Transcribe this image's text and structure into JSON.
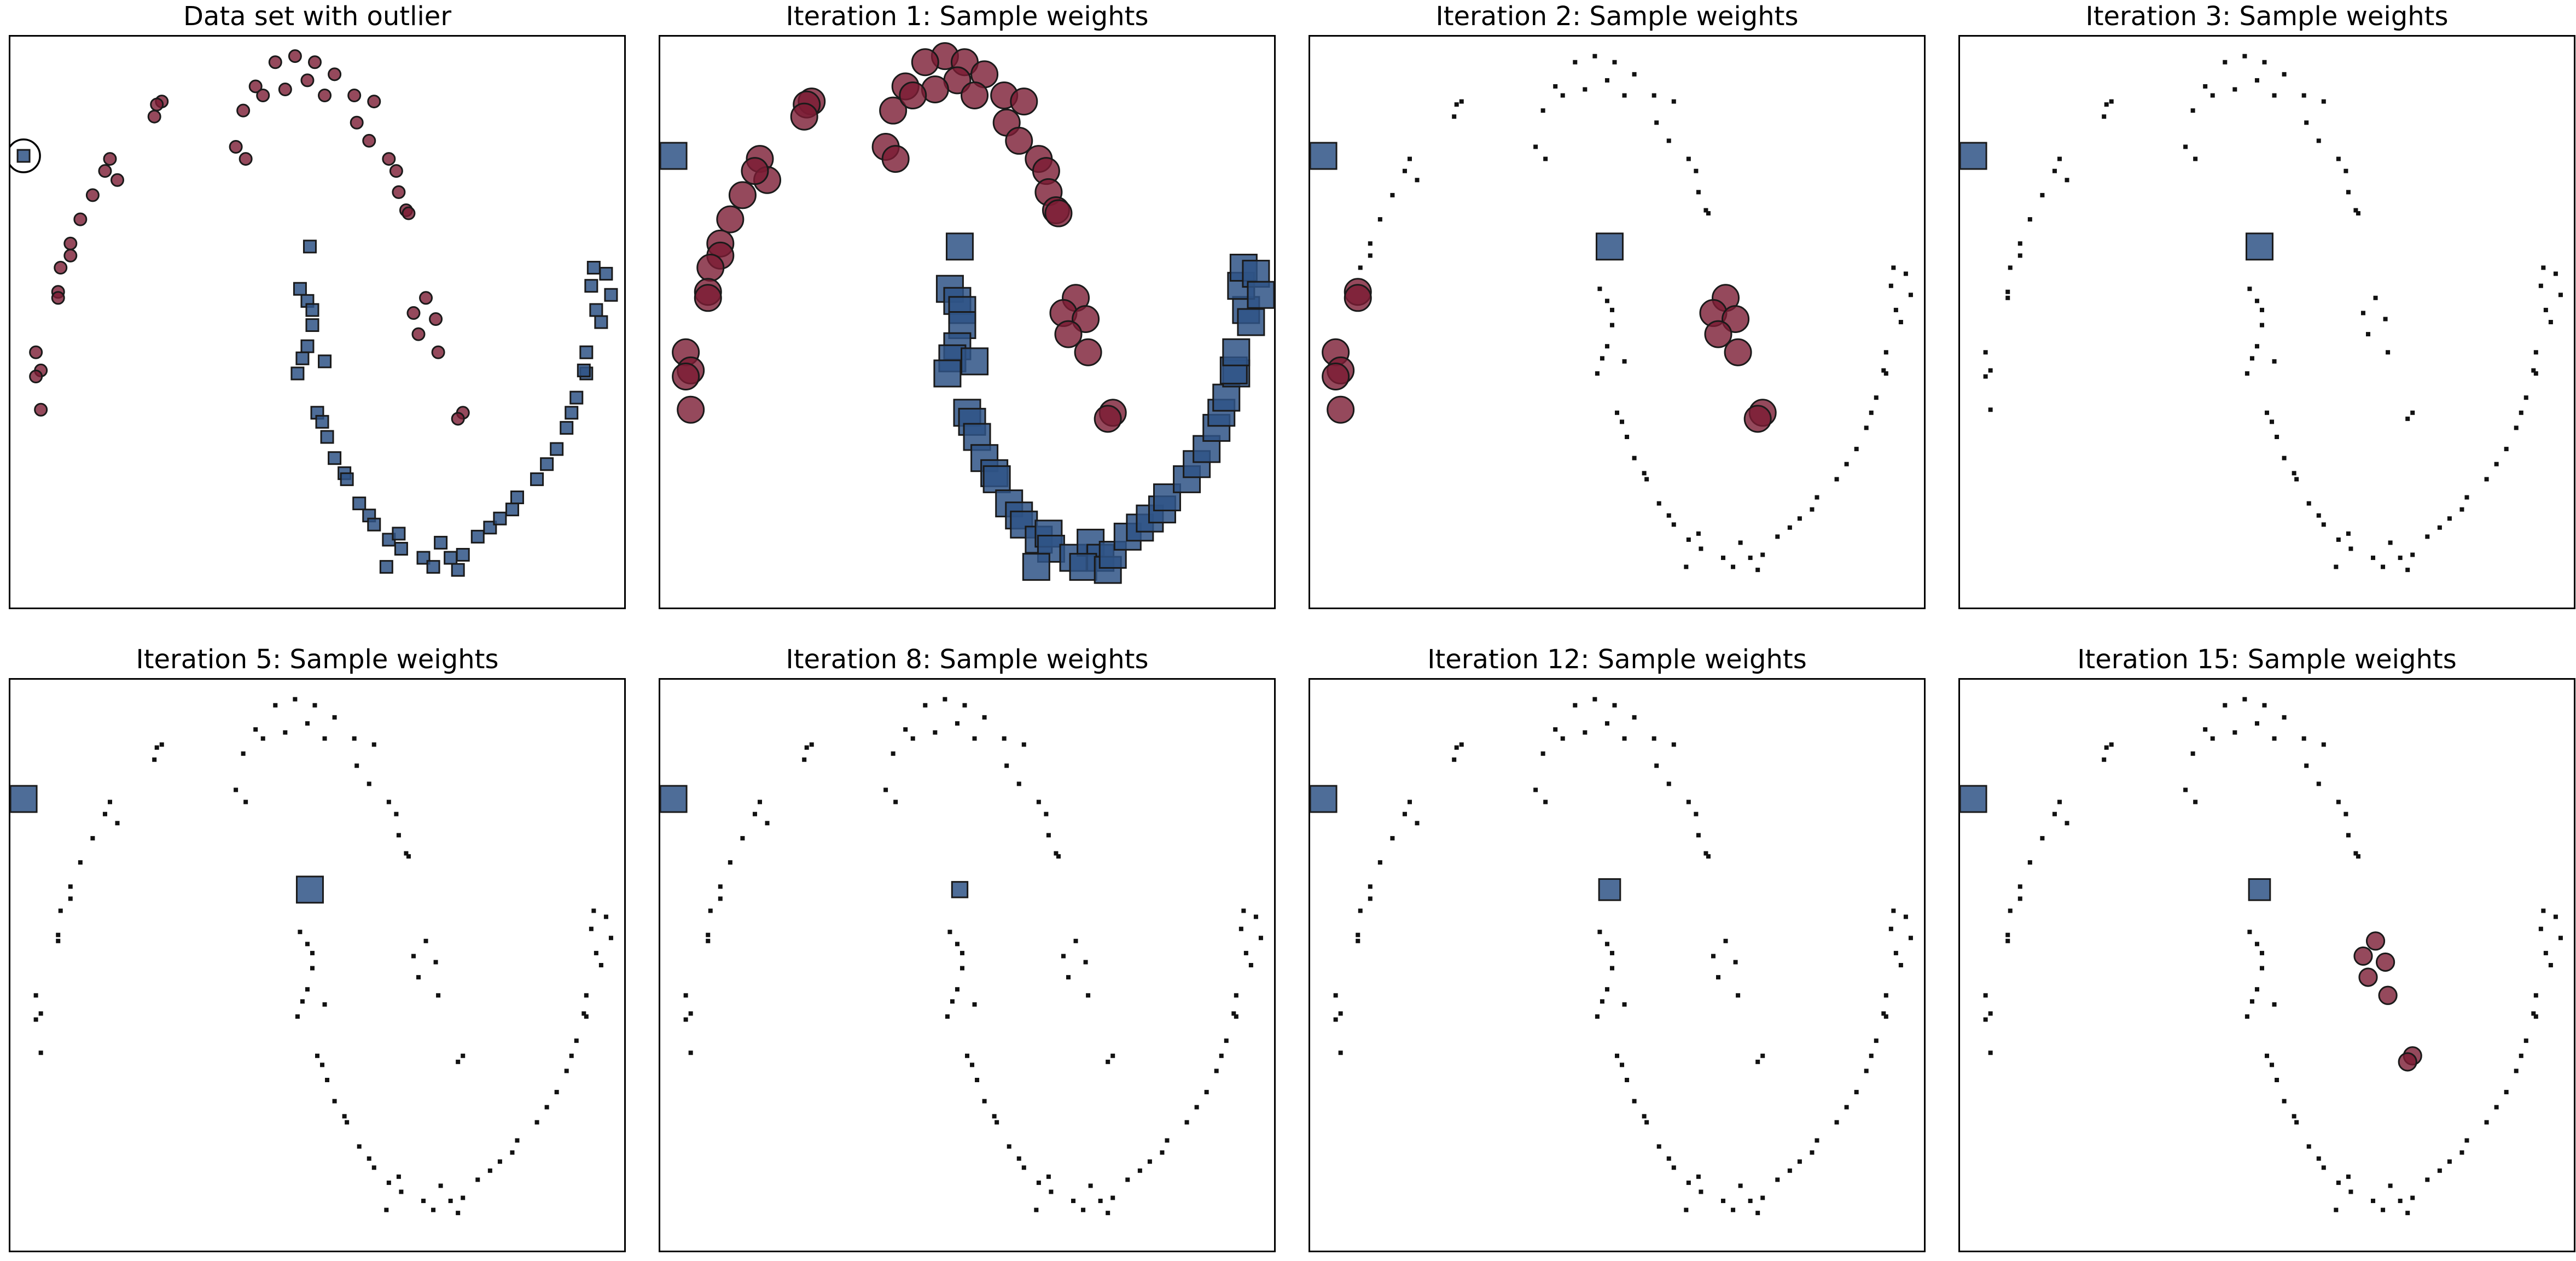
{
  "figure": {
    "colors": {
      "class_a": "#7a1c33",
      "class_b": "#2f5486",
      "marker_edge": "#1a1a1a",
      "outlier_ring": "#000000",
      "frame": "#000000"
    }
  },
  "points": [
    {
      "x": 0.44,
      "y": 0.98,
      "c": "a"
    },
    {
      "x": 0.52,
      "y": 0.96,
      "c": "a"
    },
    {
      "x": 0.36,
      "y": 0.96,
      "c": "a"
    },
    {
      "x": 0.6,
      "y": 0.92,
      "c": "a"
    },
    {
      "x": 0.49,
      "y": 0.9,
      "c": "a"
    },
    {
      "x": 0.28,
      "y": 0.88,
      "c": "a"
    },
    {
      "x": 0.4,
      "y": 0.87,
      "c": "a"
    },
    {
      "x": 0.68,
      "y": 0.85,
      "c": "a"
    },
    {
      "x": 0.76,
      "y": 0.83,
      "c": "a"
    },
    {
      "x": 0.56,
      "y": 0.85,
      "c": "a"
    },
    {
      "x": 0.23,
      "y": 0.8,
      "c": "a"
    },
    {
      "x": 0.31,
      "y": 0.85,
      "c": "a"
    },
    {
      "x": -0.1,
      "y": 0.83,
      "c": "a"
    },
    {
      "x": -0.12,
      "y": 0.82,
      "c": "a"
    },
    {
      "x": -0.13,
      "y": 0.78,
      "c": "a"
    },
    {
      "x": 0.69,
      "y": 0.76,
      "c": "a"
    },
    {
      "x": 0.74,
      "y": 0.7,
      "c": "a"
    },
    {
      "x": 0.2,
      "y": 0.68,
      "c": "a"
    },
    {
      "x": 0.24,
      "y": 0.64,
      "c": "a"
    },
    {
      "x": 0.82,
      "y": 0.64,
      "c": "a"
    },
    {
      "x": 0.85,
      "y": 0.6,
      "c": "a"
    },
    {
      "x": -0.31,
      "y": 0.64,
      "c": "a"
    },
    {
      "x": -0.28,
      "y": 0.57,
      "c": "a"
    },
    {
      "x": -0.33,
      "y": 0.6,
      "c": "a"
    },
    {
      "x": -0.38,
      "y": 0.52,
      "c": "a"
    },
    {
      "x": 0.86,
      "y": 0.53,
      "c": "a"
    },
    {
      "x": 0.89,
      "y": 0.47,
      "c": "a"
    },
    {
      "x": -0.43,
      "y": 0.44,
      "c": "a"
    },
    {
      "x": 0.9,
      "y": 0.46,
      "c": "a"
    },
    {
      "x": -0.47,
      "y": 0.36,
      "c": "a"
    },
    {
      "x": -0.47,
      "y": 0.32,
      "c": "a"
    },
    {
      "x": -0.51,
      "y": 0.28,
      "c": "a"
    },
    {
      "x": -0.52,
      "y": 0.2,
      "c": "a"
    },
    {
      "x": -0.52,
      "y": 0.18,
      "c": "a"
    },
    {
      "x": 0.97,
      "y": 0.18,
      "c": "a"
    },
    {
      "x": 0.92,
      "y": 0.13,
      "c": "a"
    },
    {
      "x": 1.01,
      "y": 0.11,
      "c": "a"
    },
    {
      "x": 0.94,
      "y": 0.06,
      "c": "a"
    },
    {
      "x": 1.02,
      "y": 0.0,
      "c": "a"
    },
    {
      "x": -0.61,
      "y": 0.0,
      "c": "a"
    },
    {
      "x": -0.59,
      "y": -0.06,
      "c": "a"
    },
    {
      "x": -0.61,
      "y": -0.08,
      "c": "a"
    },
    {
      "x": -0.59,
      "y": -0.19,
      "c": "a"
    },
    {
      "x": 1.12,
      "y": -0.2,
      "c": "a"
    },
    {
      "x": 1.1,
      "y": -0.22,
      "c": "a"
    },
    {
      "x": -0.66,
      "y": 0.65,
      "c": "b"
    },
    {
      "x": 0.5,
      "y": 0.35,
      "c": "b"
    },
    {
      "x": 0.46,
      "y": 0.21,
      "c": "b"
    },
    {
      "x": 0.49,
      "y": 0.17,
      "c": "b"
    },
    {
      "x": 0.51,
      "y": 0.14,
      "c": "b"
    },
    {
      "x": 0.51,
      "y": 0.09,
      "c": "b"
    },
    {
      "x": 0.49,
      "y": 0.02,
      "c": "b"
    },
    {
      "x": 0.47,
      "y": -0.02,
      "c": "b"
    },
    {
      "x": 0.56,
      "y": -0.03,
      "c": "b"
    },
    {
      "x": 0.45,
      "y": -0.07,
      "c": "b"
    },
    {
      "x": 0.53,
      "y": -0.2,
      "c": "b"
    },
    {
      "x": 0.55,
      "y": -0.23,
      "c": "b"
    },
    {
      "x": 0.57,
      "y": -0.28,
      "c": "b"
    },
    {
      "x": 0.6,
      "y": -0.35,
      "c": "b"
    },
    {
      "x": 0.64,
      "y": -0.4,
      "c": "b"
    },
    {
      "x": 0.65,
      "y": -0.42,
      "c": "b"
    },
    {
      "x": 0.7,
      "y": -0.5,
      "c": "b"
    },
    {
      "x": 0.74,
      "y": -0.54,
      "c": "b"
    },
    {
      "x": 0.76,
      "y": -0.57,
      "c": "b"
    },
    {
      "x": 0.82,
      "y": -0.62,
      "c": "b"
    },
    {
      "x": 0.86,
      "y": -0.6,
      "c": "b"
    },
    {
      "x": 0.87,
      "y": -0.65,
      "c": "b"
    },
    {
      "x": 0.96,
      "y": -0.68,
      "c": "b"
    },
    {
      "x": 1.03,
      "y": -0.63,
      "c": "b"
    },
    {
      "x": 1.07,
      "y": -0.68,
      "c": "b"
    },
    {
      "x": 0.81,
      "y": -0.71,
      "c": "b"
    },
    {
      "x": 1.0,
      "y": -0.71,
      "c": "b"
    },
    {
      "x": 1.1,
      "y": -0.72,
      "c": "b"
    },
    {
      "x": 1.12,
      "y": -0.67,
      "c": "b"
    },
    {
      "x": 1.18,
      "y": -0.61,
      "c": "b"
    },
    {
      "x": 1.23,
      "y": -0.58,
      "c": "b"
    },
    {
      "x": 1.27,
      "y": -0.55,
      "c": "b"
    },
    {
      "x": 1.32,
      "y": -0.52,
      "c": "b"
    },
    {
      "x": 1.34,
      "y": -0.48,
      "c": "b"
    },
    {
      "x": 1.42,
      "y": -0.42,
      "c": "b"
    },
    {
      "x": 1.46,
      "y": -0.37,
      "c": "b"
    },
    {
      "x": 1.5,
      "y": -0.32,
      "c": "b"
    },
    {
      "x": 1.54,
      "y": -0.25,
      "c": "b"
    },
    {
      "x": 1.56,
      "y": -0.2,
      "c": "b"
    },
    {
      "x": 1.58,
      "y": -0.15,
      "c": "b"
    },
    {
      "x": 1.62,
      "y": -0.07,
      "c": "b"
    },
    {
      "x": 1.61,
      "y": -0.06,
      "c": "b"
    },
    {
      "x": 1.62,
      "y": 0.0,
      "c": "b"
    },
    {
      "x": 1.66,
      "y": 0.14,
      "c": "b"
    },
    {
      "x": 1.68,
      "y": 0.1,
      "c": "b"
    },
    {
      "x": 1.64,
      "y": 0.22,
      "c": "b"
    },
    {
      "x": 1.65,
      "y": 0.28,
      "c": "b"
    },
    {
      "x": 1.7,
      "y": 0.26,
      "c": "b"
    },
    {
      "x": 1.72,
      "y": 0.19,
      "c": "b"
    }
  ],
  "chart_data": [
    {
      "type": "scatter",
      "title": "Data set with outlier",
      "xlim": [
        -0.72,
        1.78
      ],
      "ylim": [
        -0.85,
        1.05
      ],
      "weights": {
        "default_a": 1.0,
        "default_b": 1.0
      },
      "highlight": [
        {
          "index": 45,
          "label": ""
        }
      ]
    },
    {
      "type": "scatter",
      "title": "Iteration 1: Sample weights",
      "xlim": [
        -0.72,
        1.78
      ],
      "ylim": [
        -0.85,
        1.05
      ],
      "weights": {
        "default_a": 1.0,
        "default_b": 1.0
      }
    },
    {
      "type": "scatter",
      "title": "Iteration 2: Sample weights",
      "xlim": [
        -0.72,
        1.78
      ],
      "ylim": [
        -0.85,
        1.05
      ],
      "weights": {
        "default_a": 0.05,
        "default_b": 0.05,
        "overrides": [
          {
            "index": 45,
            "w": 1.0
          },
          {
            "index": 46,
            "w": 1.0
          },
          {
            "index": 34,
            "w": 1.0
          },
          {
            "index": 36,
            "w": 1.0
          },
          {
            "index": 35,
            "w": 1.0
          },
          {
            "index": 37,
            "w": 1.0
          },
          {
            "index": 38,
            "w": 1.0
          },
          {
            "index": 43,
            "w": 1.0
          },
          {
            "index": 44,
            "w": 1.0
          },
          {
            "index": 32,
            "w": 1.0
          },
          {
            "index": 33,
            "w": 1.0
          },
          {
            "index": 39,
            "w": 1.0
          },
          {
            "index": 40,
            "w": 1.0
          },
          {
            "index": 41,
            "w": 1.0
          },
          {
            "index": 42,
            "w": 1.0
          }
        ]
      }
    },
    {
      "type": "scatter",
      "title": "Iteration 3: Sample weights",
      "xlim": [
        -0.72,
        1.78
      ],
      "ylim": [
        -0.85,
        1.05
      ],
      "weights": {
        "default_a": 0.05,
        "default_b": 0.05,
        "overrides": [
          {
            "index": 45,
            "w": 1.0
          },
          {
            "index": 46,
            "w": 1.0
          }
        ]
      }
    },
    {
      "type": "scatter",
      "title": "Iteration 5: Sample weights",
      "xlim": [
        -0.72,
        1.78
      ],
      "ylim": [
        -0.85,
        1.05
      ],
      "weights": {
        "default_a": 0.05,
        "default_b": 0.05,
        "overrides": [
          {
            "index": 45,
            "w": 1.0
          },
          {
            "index": 46,
            "w": 1.0
          }
        ]
      }
    },
    {
      "type": "scatter",
      "title": "Iteration 8: Sample weights",
      "xlim": [
        -0.72,
        1.78
      ],
      "ylim": [
        -0.85,
        1.05
      ],
      "weights": {
        "default_a": 0.05,
        "default_b": 0.05,
        "overrides": [
          {
            "index": 45,
            "w": 1.0
          },
          {
            "index": 46,
            "w": 0.35
          }
        ]
      }
    },
    {
      "type": "scatter",
      "title": "Iteration 12: Sample weights",
      "xlim": [
        -0.72,
        1.78
      ],
      "ylim": [
        -0.85,
        1.05
      ],
      "weights": {
        "default_a": 0.05,
        "default_b": 0.05,
        "overrides": [
          {
            "index": 45,
            "w": 1.0
          },
          {
            "index": 46,
            "w": 0.65
          }
        ]
      }
    },
    {
      "type": "scatter",
      "title": "Iteration 15: Sample weights",
      "xlim": [
        -0.72,
        1.78
      ],
      "ylim": [
        -0.85,
        1.05
      ],
      "weights": {
        "default_a": 0.05,
        "default_b": 0.05,
        "overrides": [
          {
            "index": 45,
            "w": 1.0
          },
          {
            "index": 46,
            "w": 0.65
          },
          {
            "index": 34,
            "w": 0.45
          },
          {
            "index": 36,
            "w": 0.45
          },
          {
            "index": 35,
            "w": 0.45
          },
          {
            "index": 37,
            "w": 0.45
          },
          {
            "index": 38,
            "w": 0.45
          },
          {
            "index": 43,
            "w": 0.45
          },
          {
            "index": 44,
            "w": 0.45
          }
        ]
      }
    }
  ]
}
